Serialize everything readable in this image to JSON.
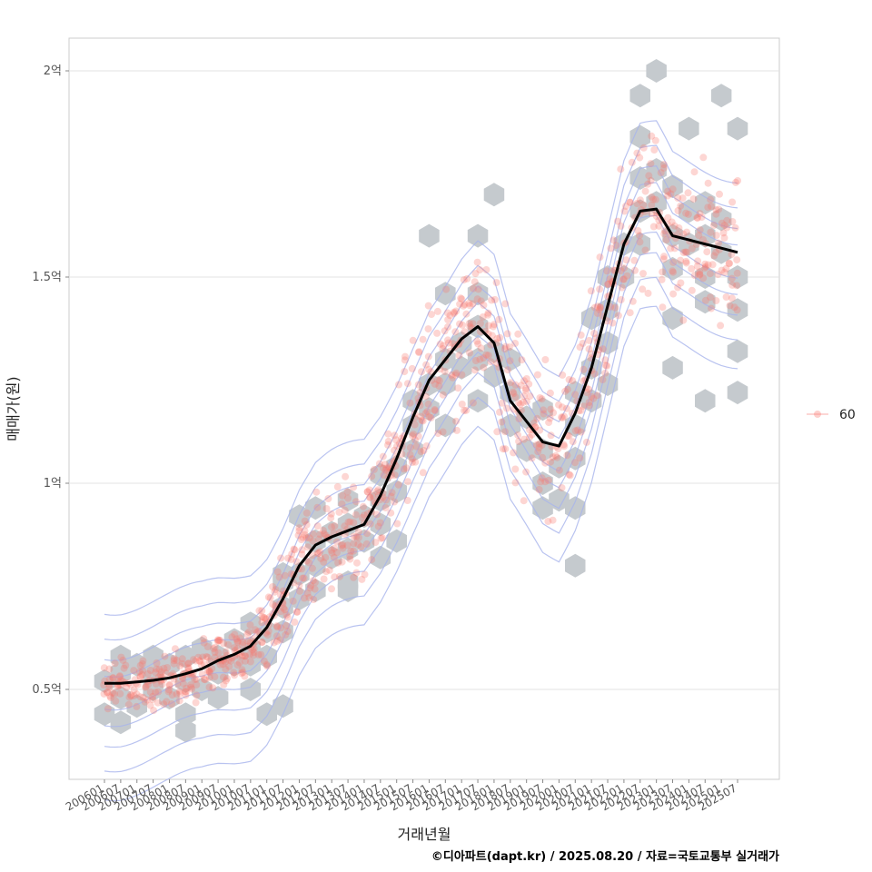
{
  "chart_data": {
    "type": "scatter",
    "xlabel": "거래년월",
    "ylabel": "매매가(원)",
    "caption": "©디아파트(dapt.kr) / 2025.08.20 / 자료=국토교통부 실거래가",
    "legend": {
      "placement": "right",
      "label": "60",
      "color": "#f8766d"
    },
    "grid": true,
    "xlim": [
      "2005-10",
      "2027-03"
    ],
    "ylim": [
      28000000,
      207000000
    ],
    "y_ticks": [
      {
        "value": 50000000,
        "label": "0.5억"
      },
      {
        "value": 100000000,
        "label": "1억"
      },
      {
        "value": 150000000,
        "label": "1.5억"
      },
      {
        "value": 200000000,
        "label": "2억"
      }
    ],
    "x_ticks": [
      "200601",
      "200607",
      "200701",
      "200707",
      "200801",
      "200807",
      "200901",
      "200907",
      "201001",
      "201007",
      "201101",
      "201107",
      "201201",
      "201207",
      "201301",
      "201307",
      "201401",
      "201407",
      "201501",
      "201507",
      "201601",
      "201607",
      "201701",
      "201707",
      "201801",
      "201807",
      "201901",
      "201907",
      "202001",
      "202007",
      "202101",
      "202107",
      "202201",
      "202207",
      "202301",
      "202307",
      "202401",
      "202407",
      "202501",
      "202507"
    ],
    "smooth_line": {
      "name": "trend",
      "color": "#000000",
      "points": [
        [
          "2006-01",
          51500000
        ],
        [
          "2006-07",
          51500000
        ],
        [
          "2007-01",
          51800000
        ],
        [
          "2007-07",
          52200000
        ],
        [
          "2008-01",
          52800000
        ],
        [
          "2008-07",
          53800000
        ],
        [
          "2009-01",
          55000000
        ],
        [
          "2009-07",
          57000000
        ],
        [
          "2010-01",
          58500000
        ],
        [
          "2010-07",
          60500000
        ],
        [
          "2011-01",
          65000000
        ],
        [
          "2011-07",
          72000000
        ],
        [
          "2012-01",
          80000000
        ],
        [
          "2012-07",
          85000000
        ],
        [
          "2013-01",
          87000000
        ],
        [
          "2013-07",
          88500000
        ],
        [
          "2014-01",
          90000000
        ],
        [
          "2014-07",
          97000000
        ],
        [
          "2015-01",
          106000000
        ],
        [
          "2015-07",
          116000000
        ],
        [
          "2016-01",
          125000000
        ],
        [
          "2016-07",
          130000000
        ],
        [
          "2017-01",
          135000000
        ],
        [
          "2017-07",
          138000000
        ],
        [
          "2018-01",
          134000000
        ],
        [
          "2018-07",
          120000000
        ],
        [
          "2019-01",
          115000000
        ],
        [
          "2019-07",
          110000000
        ],
        [
          "2020-01",
          109000000
        ],
        [
          "2020-07",
          117000000
        ],
        [
          "2021-01",
          128000000
        ],
        [
          "2021-07",
          143000000
        ],
        [
          "2022-01",
          158000000
        ],
        [
          "2022-07",
          166000000
        ],
        [
          "2023-01",
          166500000
        ],
        [
          "2023-07",
          160000000
        ],
        [
          "2024-01",
          159000000
        ],
        [
          "2024-07",
          158000000
        ],
        [
          "2025-01",
          157000000
        ],
        [
          "2025-07",
          156000000
        ]
      ]
    },
    "hex_fill_color": "#c5cace",
    "contour_color": "#a8b4ec",
    "hex_bins": [
      [
        "2006-01",
        52000000
      ],
      [
        "2006-07",
        54000000
      ],
      [
        "2007-01",
        56000000
      ],
      [
        "2007-07",
        54000000
      ],
      [
        "2008-01",
        56000000
      ],
      [
        "2008-07",
        58000000
      ],
      [
        "2009-01",
        60000000
      ],
      [
        "2009-07",
        58000000
      ],
      [
        "2010-01",
        62000000
      ],
      [
        "2010-07",
        60000000
      ],
      [
        "2011-01",
        64000000
      ],
      [
        "2011-07",
        70000000
      ],
      [
        "2012-01",
        78000000
      ],
      [
        "2012-07",
        86000000
      ],
      [
        "2013-01",
        88000000
      ],
      [
        "2013-07",
        90000000
      ],
      [
        "2014-01",
        92000000
      ],
      [
        "2014-07",
        96000000
      ],
      [
        "2015-01",
        104000000
      ],
      [
        "2015-07",
        114000000
      ],
      [
        "2016-01",
        124000000
      ],
      [
        "2016-07",
        130000000
      ],
      [
        "2017-01",
        134000000
      ],
      [
        "2017-07",
        138000000
      ],
      [
        "2018-01",
        132000000
      ],
      [
        "2018-07",
        122000000
      ],
      [
        "2019-01",
        116000000
      ],
      [
        "2019-07",
        108000000
      ],
      [
        "2020-01",
        104000000
      ],
      [
        "2020-07",
        114000000
      ],
      [
        "2021-01",
        128000000
      ],
      [
        "2021-07",
        142000000
      ],
      [
        "2022-01",
        158000000
      ],
      [
        "2022-07",
        166000000
      ],
      [
        "2023-01",
        168000000
      ],
      [
        "2023-07",
        160000000
      ],
      [
        "2024-01",
        158000000
      ],
      [
        "2024-07",
        160000000
      ],
      [
        "2025-01",
        156000000
      ],
      [
        "2025-07",
        150000000
      ],
      [
        "2006-01",
        44000000
      ],
      [
        "2006-07",
        48000000
      ],
      [
        "2007-01",
        46000000
      ],
      [
        "2007-07",
        50000000
      ],
      [
        "2008-01",
        48000000
      ],
      [
        "2008-07",
        52000000
      ],
      [
        "2009-01",
        50000000
      ],
      [
        "2009-07",
        54000000
      ],
      [
        "2010-01",
        56000000
      ],
      [
        "2010-07",
        56000000
      ],
      [
        "2011-01",
        58000000
      ],
      [
        "2011-07",
        64000000
      ],
      [
        "2012-01",
        72000000
      ],
      [
        "2012-07",
        80000000
      ],
      [
        "2013-01",
        82000000
      ],
      [
        "2013-07",
        84000000
      ],
      [
        "2014-01",
        86000000
      ],
      [
        "2014-07",
        90000000
      ],
      [
        "2015-01",
        98000000
      ],
      [
        "2015-07",
        108000000
      ],
      [
        "2016-01",
        118000000
      ],
      [
        "2016-07",
        124000000
      ],
      [
        "2017-01",
        128000000
      ],
      [
        "2017-07",
        130000000
      ],
      [
        "2018-01",
        126000000
      ],
      [
        "2018-07",
        114000000
      ],
      [
        "2019-01",
        108000000
      ],
      [
        "2019-07",
        100000000
      ],
      [
        "2020-01",
        96000000
      ],
      [
        "2020-07",
        106000000
      ],
      [
        "2021-01",
        120000000
      ],
      [
        "2021-07",
        134000000
      ],
      [
        "2022-01",
        150000000
      ],
      [
        "2022-07",
        158000000
      ],
      [
        "2023-01",
        176000000
      ],
      [
        "2023-07",
        152000000
      ],
      [
        "2024-01",
        166000000
      ],
      [
        "2024-07",
        150000000
      ],
      [
        "2025-01",
        164000000
      ],
      [
        "2025-07",
        142000000
      ],
      [
        "2006-07",
        58000000
      ],
      [
        "2007-07",
        58000000
      ],
      [
        "2008-07",
        44000000
      ],
      [
        "2009-07",
        48000000
      ],
      [
        "2010-07",
        66000000
      ],
      [
        "2011-07",
        78000000
      ],
      [
        "2012-07",
        94000000
      ],
      [
        "2013-07",
        96000000
      ],
      [
        "2014-07",
        102000000
      ],
      [
        "2015-07",
        120000000
      ],
      [
        "2016-07",
        146000000
      ],
      [
        "2017-07",
        146000000
      ],
      [
        "2018-07",
        130000000
      ],
      [
        "2019-07",
        118000000
      ],
      [
        "2020-07",
        122000000
      ],
      [
        "2021-07",
        150000000
      ],
      [
        "2022-07",
        174000000
      ],
      [
        "2023-07",
        172000000
      ],
      [
        "2024-07",
        168000000
      ],
      [
        "2025-07",
        132000000
      ],
      [
        "2006-07",
        42000000
      ],
      [
        "2008-07",
        40000000
      ],
      [
        "2010-07",
        50000000
      ],
      [
        "2011-07",
        46000000
      ],
      [
        "2012-07",
        74000000
      ],
      [
        "2013-07",
        74000000
      ],
      [
        "2014-07",
        82000000
      ],
      [
        "2016-07",
        114000000
      ],
      [
        "2017-07",
        120000000
      ],
      [
        "2019-07",
        94000000
      ],
      [
        "2020-07",
        94000000
      ],
      [
        "2021-07",
        124000000
      ],
      [
        "2022-07",
        184000000
      ],
      [
        "2023-07",
        140000000
      ],
      [
        "2024-07",
        144000000
      ],
      [
        "2025-07",
        122000000
      ],
      [
        "2012-01",
        92000000
      ],
      [
        "2015-01",
        86000000
      ],
      [
        "2016-01",
        160000000
      ],
      [
        "2017-07",
        160000000
      ],
      [
        "2018-01",
        170000000
      ],
      [
        "2020-07",
        80000000
      ],
      [
        "2021-01",
        140000000
      ],
      [
        "2022-07",
        194000000
      ],
      [
        "2023-01",
        200000000
      ],
      [
        "2025-01",
        194000000
      ],
      [
        "2025-07",
        186000000
      ],
      [
        "2024-01",
        186000000
      ],
      [
        "2023-07",
        128000000
      ],
      [
        "2024-07",
        120000000
      ],
      [
        "2011-01",
        44000000
      ],
      [
        "2011-07",
        76000000
      ],
      [
        "2013-07",
        76000000
      ]
    ],
    "points_summary": {
      "series": "60",
      "note_color": "#f8766d"
    }
  }
}
